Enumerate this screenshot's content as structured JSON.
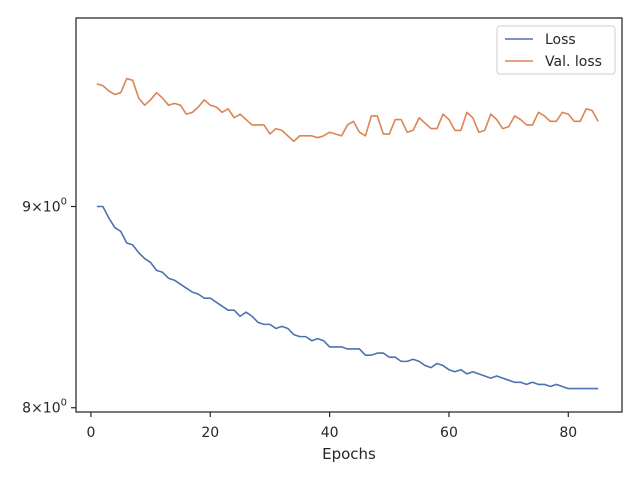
{
  "chart_data": {
    "type": "line",
    "title": "",
    "xlabel": "Epochs",
    "ylabel": "",
    "xlim": [
      -2.5,
      89
    ],
    "ylim": [
      7.98,
      10.05
    ],
    "y_scale": "log",
    "grid": false,
    "legend_position": "top-right",
    "x_ticks": [
      {
        "value": 0,
        "label": "0"
      },
      {
        "value": 20,
        "label": "20"
      },
      {
        "value": 40,
        "label": "40"
      },
      {
        "value": 60,
        "label": "60"
      },
      {
        "value": 80,
        "label": "80"
      }
    ],
    "y_ticks": [
      {
        "value": 8,
        "base": "8",
        "exp": "0"
      },
      {
        "value": 9,
        "base": "9",
        "exp": "0"
      }
    ],
    "x": [
      1,
      2,
      3,
      4,
      5,
      6,
      7,
      8,
      9,
      10,
      11,
      12,
      13,
      14,
      15,
      16,
      17,
      18,
      19,
      20,
      21,
      22,
      23,
      24,
      25,
      26,
      27,
      28,
      29,
      30,
      31,
      32,
      33,
      34,
      35,
      36,
      37,
      38,
      39,
      40,
      41,
      42,
      43,
      44,
      45,
      46,
      47,
      48,
      49,
      50,
      51,
      52,
      53,
      54,
      55,
      56,
      57,
      58,
      59,
      60,
      61,
      62,
      63,
      64,
      65,
      66,
      67,
      68,
      69,
      70,
      71,
      72,
      73,
      74,
      75,
      76,
      77,
      78,
      79,
      80,
      81,
      82,
      83,
      84,
      85
    ],
    "series": [
      {
        "name": "Loss",
        "color": "#4c72b0",
        "values": [
          9.0,
          9.0,
          8.94,
          8.89,
          8.87,
          8.81,
          8.8,
          8.76,
          8.73,
          8.71,
          8.67,
          8.66,
          8.63,
          8.62,
          8.6,
          8.58,
          8.56,
          8.55,
          8.53,
          8.53,
          8.51,
          8.49,
          8.47,
          8.47,
          8.44,
          8.46,
          8.44,
          8.41,
          8.4,
          8.4,
          8.38,
          8.39,
          8.38,
          8.35,
          8.34,
          8.34,
          8.32,
          8.33,
          8.32,
          8.29,
          8.29,
          8.29,
          8.28,
          8.28,
          8.28,
          8.25,
          8.25,
          8.26,
          8.26,
          8.24,
          8.24,
          8.22,
          8.22,
          8.23,
          8.22,
          8.2,
          8.19,
          8.21,
          8.2,
          8.18,
          8.17,
          8.18,
          8.16,
          8.17,
          8.16,
          8.15,
          8.14,
          8.15,
          8.14,
          8.13,
          8.12,
          8.12,
          8.11,
          8.12,
          8.11,
          8.11,
          8.1,
          8.11,
          8.1,
          8.09,
          8.09,
          8.09,
          8.09,
          8.09,
          8.09
        ]
      },
      {
        "name": "Val. loss",
        "color": "#dd8452",
        "values": [
          9.67,
          9.66,
          9.63,
          9.61,
          9.62,
          9.7,
          9.69,
          9.59,
          9.55,
          9.58,
          9.62,
          9.59,
          9.55,
          9.56,
          9.55,
          9.5,
          9.51,
          9.54,
          9.58,
          9.55,
          9.54,
          9.51,
          9.53,
          9.48,
          9.5,
          9.47,
          9.44,
          9.44,
          9.44,
          9.39,
          9.42,
          9.41,
          9.38,
          9.35,
          9.38,
          9.38,
          9.38,
          9.37,
          9.38,
          9.4,
          9.39,
          9.38,
          9.44,
          9.46,
          9.4,
          9.38,
          9.49,
          9.49,
          9.39,
          9.39,
          9.47,
          9.47,
          9.4,
          9.41,
          9.48,
          9.45,
          9.42,
          9.42,
          9.5,
          9.47,
          9.41,
          9.41,
          9.51,
          9.48,
          9.4,
          9.41,
          9.5,
          9.47,
          9.42,
          9.43,
          9.49,
          9.47,
          9.44,
          9.44,
          9.51,
          9.49,
          9.46,
          9.46,
          9.51,
          9.5,
          9.46,
          9.46,
          9.53,
          9.52,
          9.46
        ]
      }
    ]
  }
}
